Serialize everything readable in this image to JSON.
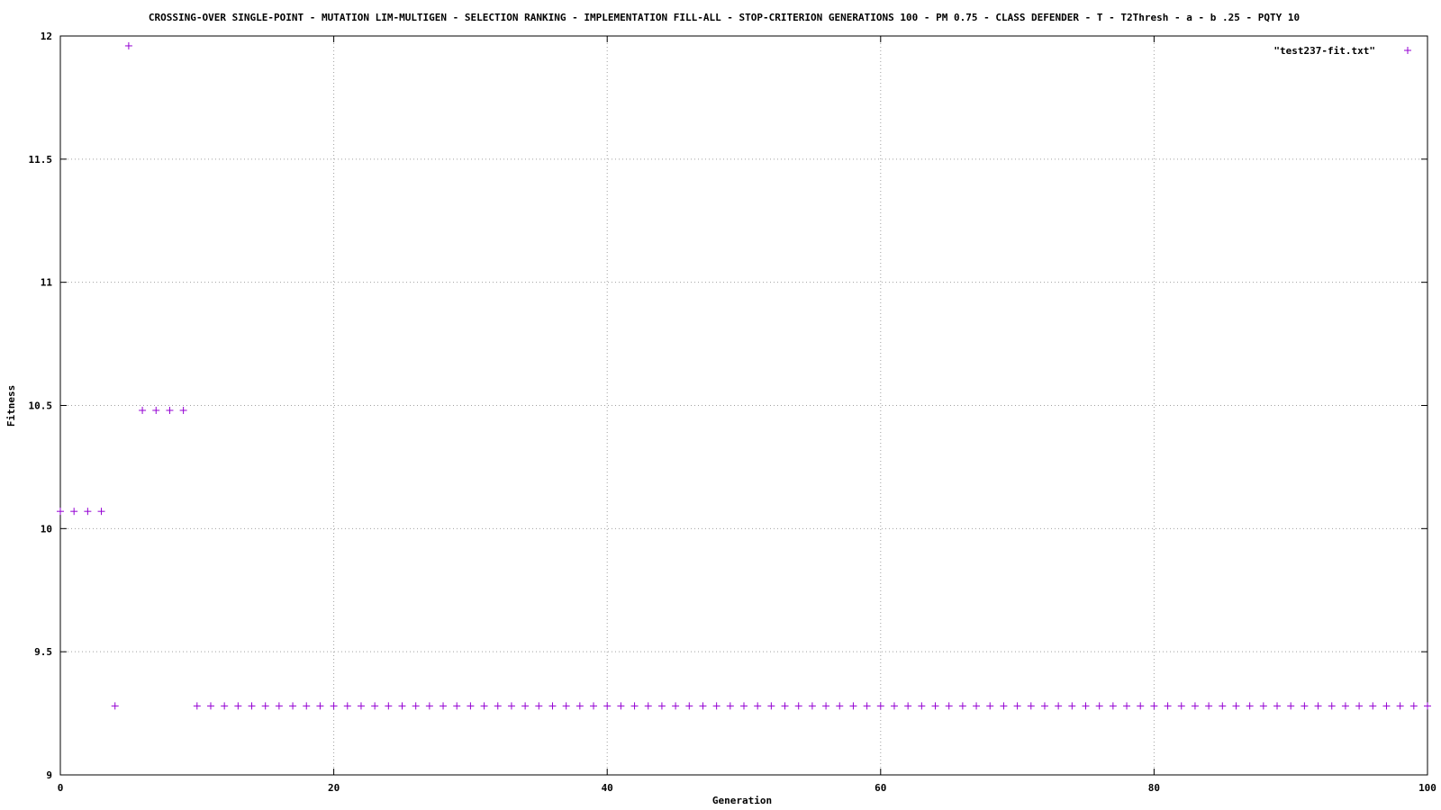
{
  "chart_data": {
    "type": "scatter",
    "title": "CROSSING-OVER SINGLE-POINT - MUTATION LIM-MULTIGEN - SELECTION RANKING    - IMPLEMENTATION FILL-ALL - STOP-CRITERION GENERATIONS 100 - PM 0.75 - CLASS DEFENDER - T  - T2Thresh  - a  - b .25 - PQTY 10",
    "xlabel": "Generation",
    "ylabel": "Fitness",
    "xlim": [
      0,
      100
    ],
    "ylim": [
      9,
      12
    ],
    "x_ticks": [
      0,
      20,
      40,
      60,
      80,
      100
    ],
    "y_ticks": [
      9,
      9.5,
      10,
      10.5,
      11,
      11.5,
      12
    ],
    "x_tick_labels": [
      "0",
      "20",
      "40",
      "60",
      "80",
      "100"
    ],
    "y_tick_labels": [
      "9",
      "9.5",
      "10",
      "10.5",
      "11",
      "11.5",
      "12"
    ],
    "grid": true,
    "legend_position": "top-right",
    "series": [
      {
        "name": "\"test237-fit.txt\"",
        "color": "#9400d3",
        "marker": "plus",
        "x": [
          0,
          1,
          2,
          3,
          4,
          5,
          6,
          7,
          8,
          9,
          10,
          11,
          12,
          13,
          14,
          15,
          16,
          17,
          18,
          19,
          20,
          21,
          22,
          23,
          24,
          25,
          26,
          27,
          28,
          29,
          30,
          31,
          32,
          33,
          34,
          35,
          36,
          37,
          38,
          39,
          40,
          41,
          42,
          43,
          44,
          45,
          46,
          47,
          48,
          49,
          50,
          51,
          52,
          53,
          54,
          55,
          56,
          57,
          58,
          59,
          60,
          61,
          62,
          63,
          64,
          65,
          66,
          67,
          68,
          69,
          70,
          71,
          72,
          73,
          74,
          75,
          76,
          77,
          78,
          79,
          80,
          81,
          82,
          83,
          84,
          85,
          86,
          87,
          88,
          89,
          90,
          91,
          92,
          93,
          94,
          95,
          96,
          97,
          98,
          99,
          100
        ],
        "y": [
          10.07,
          10.07,
          10.07,
          10.07,
          9.28,
          11.96,
          10.48,
          10.48,
          10.48,
          10.48,
          9.28,
          9.28,
          9.28,
          9.28,
          9.28,
          9.28,
          9.28,
          9.28,
          9.28,
          9.28,
          9.28,
          9.28,
          9.28,
          9.28,
          9.28,
          9.28,
          9.28,
          9.28,
          9.28,
          9.28,
          9.28,
          9.28,
          9.28,
          9.28,
          9.28,
          9.28,
          9.28,
          9.28,
          9.28,
          9.28,
          9.28,
          9.28,
          9.28,
          9.28,
          9.28,
          9.28,
          9.28,
          9.28,
          9.28,
          9.28,
          9.28,
          9.28,
          9.28,
          9.28,
          9.28,
          9.28,
          9.28,
          9.28,
          9.28,
          9.28,
          9.28,
          9.28,
          9.28,
          9.28,
          9.28,
          9.28,
          9.28,
          9.28,
          9.28,
          9.28,
          9.28,
          9.28,
          9.28,
          9.28,
          9.28,
          9.28,
          9.28,
          9.28,
          9.28,
          9.28,
          9.28,
          9.28,
          9.28,
          9.28,
          9.28,
          9.28,
          9.28,
          9.28,
          9.28,
          9.28,
          9.28,
          9.28,
          9.28,
          9.28,
          9.28,
          9.28,
          9.28,
          9.28,
          9.28,
          9.28,
          9.28
        ]
      }
    ]
  }
}
